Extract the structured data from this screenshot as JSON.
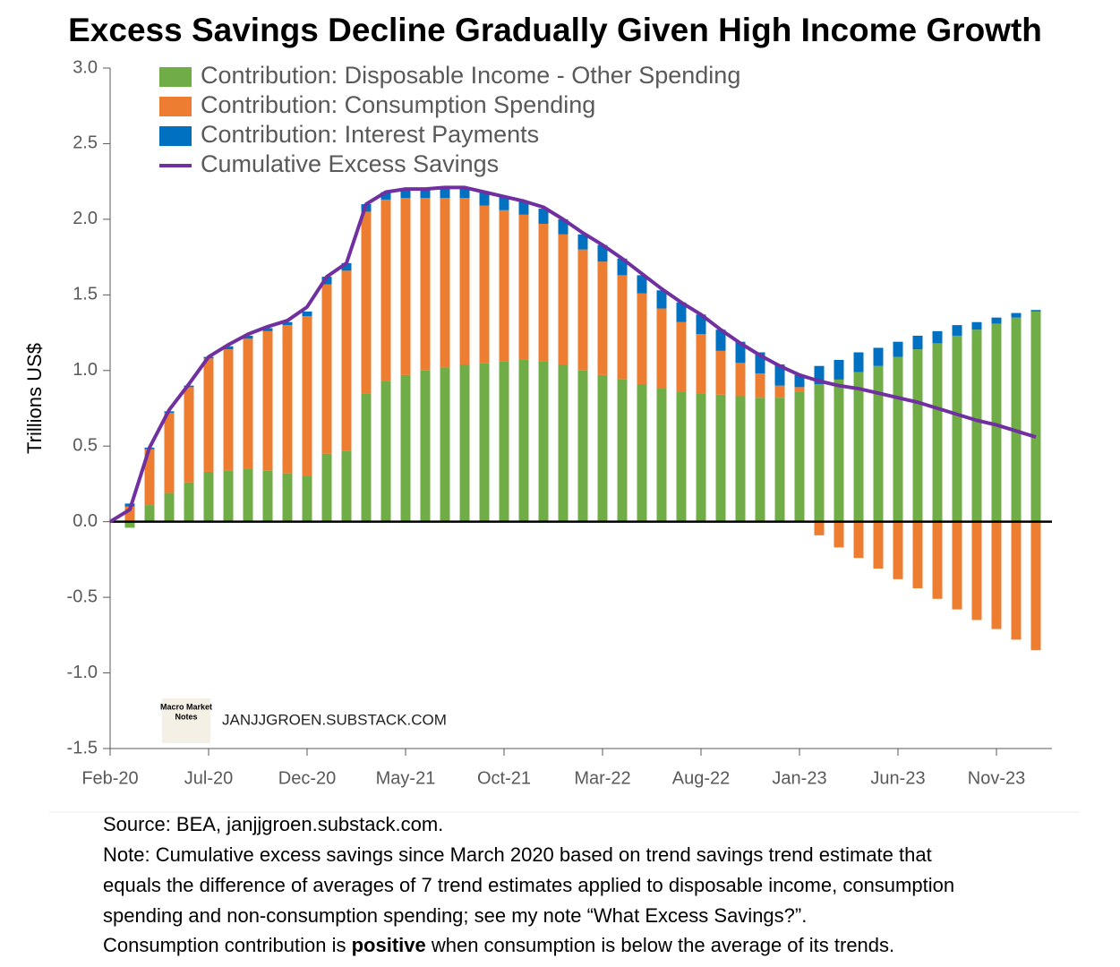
{
  "chart_data": {
    "type": "bar",
    "title": "Excess Savings Decline Gradually Given High Income Growth",
    "y_label": "Trillions US$",
    "categories": [
      "Feb-20",
      null,
      null,
      null,
      null,
      "Jul-20",
      null,
      null,
      null,
      null,
      "Dec-20",
      null,
      null,
      null,
      null,
      "May-21",
      null,
      null,
      null,
      null,
      "Oct-21",
      null,
      null,
      null,
      null,
      "Mar-22",
      null,
      null,
      null,
      null,
      "Aug-22",
      null,
      null,
      null,
      null,
      "Jan-23",
      null,
      null,
      null,
      null,
      "Jun-23",
      null,
      null,
      null,
      null,
      "Nov-23",
      null,
      null
    ],
    "series": [
      {
        "name": "Contribution: Disposable Income - Other Spending",
        "color": "#70ad47",
        "values": [
          null,
          -0.04,
          0.11,
          0.19,
          0.26,
          0.33,
          0.34,
          0.35,
          0.34,
          0.32,
          0.3,
          0.45,
          0.47,
          0.85,
          0.93,
          0.97,
          1.0,
          1.02,
          1.04,
          1.05,
          1.06,
          1.07,
          1.06,
          1.04,
          1.0,
          0.97,
          0.94,
          0.91,
          0.88,
          0.86,
          0.85,
          0.84,
          0.83,
          0.82,
          0.82,
          0.86,
          0.91,
          0.94,
          0.99,
          1.03,
          1.09,
          1.14,
          1.18,
          1.23,
          1.27,
          1.31,
          1.35,
          1.39
        ]
      },
      {
        "name": "Contribution: Consumption Spending",
        "color": "#ed7d31",
        "values": [
          null,
          0.1,
          0.37,
          0.53,
          0.63,
          0.75,
          0.8,
          0.86,
          0.92,
          0.98,
          1.06,
          1.12,
          1.19,
          1.2,
          1.2,
          1.17,
          1.14,
          1.12,
          1.1,
          1.04,
          1.0,
          0.96,
          0.91,
          0.86,
          0.8,
          0.75,
          0.69,
          0.6,
          0.53,
          0.46,
          0.39,
          0.29,
          0.22,
          0.16,
          0.08,
          0.03,
          -0.09,
          -0.17,
          -0.24,
          -0.31,
          -0.38,
          -0.44,
          -0.51,
          -0.58,
          -0.65,
          -0.71,
          -0.78,
          -0.85
        ]
      },
      {
        "name": "Contribution: Interest Payments",
        "color": "#0070c0",
        "values": [
          null,
          0.02,
          0.01,
          0.01,
          0.01,
          0.01,
          0.02,
          0.02,
          0.02,
          0.02,
          0.03,
          0.05,
          0.05,
          0.05,
          0.05,
          0.06,
          0.06,
          0.07,
          0.07,
          0.09,
          0.09,
          0.09,
          0.1,
          0.1,
          0.1,
          0.11,
          0.11,
          0.12,
          0.12,
          0.13,
          0.13,
          0.14,
          0.14,
          0.14,
          0.14,
          0.08,
          0.12,
          0.13,
          0.13,
          0.12,
          0.1,
          0.09,
          0.08,
          0.07,
          0.05,
          0.04,
          0.03,
          0.01
        ]
      },
      {
        "name": "Cumulative Excess Savings",
        "color": "#7030a0",
        "type": "line",
        "values": [
          0,
          0.08,
          0.49,
          0.74,
          0.91,
          1.09,
          1.17,
          1.24,
          1.29,
          1.33,
          1.42,
          1.62,
          1.71,
          2.1,
          2.18,
          2.2,
          2.2,
          2.21,
          2.21,
          2.18,
          2.15,
          2.12,
          2.08,
          2.0,
          1.91,
          1.83,
          1.74,
          1.64,
          1.54,
          1.45,
          1.37,
          1.27,
          1.18,
          1.1,
          1.03,
          0.97,
          0.93,
          0.9,
          0.88,
          0.85,
          0.82,
          0.79,
          0.75,
          0.71,
          0.67,
          0.64,
          0.6,
          0.56
        ]
      }
    ],
    "ylim": [
      -1.5,
      3.0
    ],
    "yticks": [
      {
        "value": -1.5,
        "label": "-1.5"
      },
      {
        "value": -1,
        "label": "-1.0"
      },
      -0.5,
      {
        "value": 0,
        "label": "0.0"
      },
      0.5,
      {
        "value": 1,
        "label": "1.0"
      },
      1.5,
      {
        "value": 2,
        "label": "2.0"
      },
      2.5,
      {
        "value": 3,
        "label": "3.0"
      }
    ],
    "legend": "upper left",
    "logo": {
      "line1": "Macro Market",
      "line2": "Notes",
      "site": "JANJJGROEN.SUBSTACK.COM"
    },
    "notes": [
      "Source: BEA, janjjgroen.substack.com.",
      "Note: Cumulative excess savings since March 2020 based on trend savings trend estimate that",
      "equals the difference of averages of 7 trend estimates applied to disposable income, consumption",
      "spending and non-consumption spending; see my note “What Excess Savings?”."
    ],
    "last_note": [
      "Consumption contribution is ",
      "positive",
      " when consumption is below the average of its trends."
    ]
  }
}
